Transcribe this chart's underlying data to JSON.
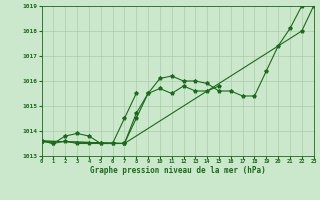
{
  "title": "Graphe pression niveau de la mer (hPa)",
  "background_color": "#cce8cc",
  "grid_color": "#aaccaa",
  "line_color": "#1a6b1a",
  "ylim": [
    1013,
    1019
  ],
  "xlim": [
    0,
    23
  ],
  "yticks": [
    1013,
    1014,
    1015,
    1016,
    1017,
    1018,
    1019
  ],
  "xticks": [
    0,
    1,
    2,
    3,
    4,
    5,
    6,
    7,
    8,
    9,
    10,
    11,
    12,
    13,
    14,
    15,
    16,
    17,
    18,
    19,
    20,
    21,
    22,
    23
  ],
  "series": [
    [
      1013.6,
      1013.5,
      1013.6,
      1013.5,
      1013.5,
      1013.5,
      1013.5,
      1013.5,
      1014.5,
      1015.5,
      1016.1,
      1016.2,
      1016.0,
      1016.0,
      1015.9,
      1015.6,
      1015.6,
      1015.4,
      1015.4,
      1016.4,
      1017.4,
      1018.1,
      1019.0,
      null
    ],
    [
      1013.6,
      1013.5,
      1013.8,
      1013.9,
      1013.8,
      1013.5,
      1013.5,
      1014.5,
      1015.5,
      null,
      null,
      null,
      null,
      null,
      null,
      null,
      null,
      null,
      null,
      null,
      null,
      null,
      null,
      null
    ],
    [
      1013.6,
      null,
      null,
      null,
      null,
      null,
      null,
      1013.5,
      1014.7,
      1015.5,
      1015.7,
      1015.5,
      1015.8,
      1015.6,
      1015.6,
      1015.8,
      null,
      null,
      null,
      null,
      null,
      null,
      null,
      null
    ],
    [
      1013.6,
      null,
      null,
      null,
      null,
      null,
      null,
      1013.5,
      null,
      null,
      null,
      null,
      null,
      null,
      null,
      null,
      null,
      null,
      null,
      null,
      null,
      null,
      1018.0,
      1019.0
    ]
  ]
}
